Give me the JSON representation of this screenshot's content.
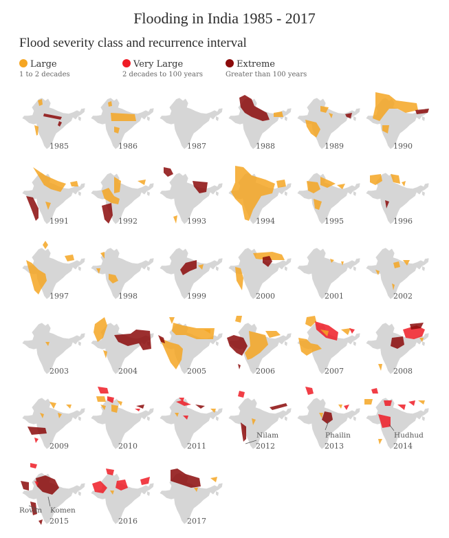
{
  "title": "Flooding in India 1985 - 2017",
  "subtitle": "Flood severity class and recurrence interval",
  "legend": [
    {
      "label": "Large",
      "desc": "1 to 2 decades",
      "color": "#f5a623"
    },
    {
      "label": "Very Large",
      "desc": "2 decades to 100 years",
      "color": "#ef1c26"
    },
    {
      "label": "Extreme",
      "desc": "Greater than 100 years",
      "color": "#8b0a0a"
    }
  ],
  "colors": {
    "land": "#d6d6d6",
    "large": "#f5a623",
    "very_large": "#ef1c26",
    "extreme": "#8b0a0a"
  },
  "years": [
    "1985",
    "1986",
    "1987",
    "1988",
    "1989",
    "1990",
    "1991",
    "1992",
    "1993",
    "1994",
    "1995",
    "1996",
    "1997",
    "1998",
    "1999",
    "2000",
    "2001",
    "2002",
    "2003",
    "2004",
    "2005",
    "2006",
    "2007",
    "2008",
    "2009",
    "2010",
    "2011",
    "2012",
    "2013",
    "2014",
    "2015",
    "2016",
    "2017"
  ],
  "annotations": {
    "nilam": "Nilam",
    "phailin": "Phailin",
    "hudhud": "Hudhud",
    "rovan": "Rovan",
    "komen": "Komen"
  }
}
